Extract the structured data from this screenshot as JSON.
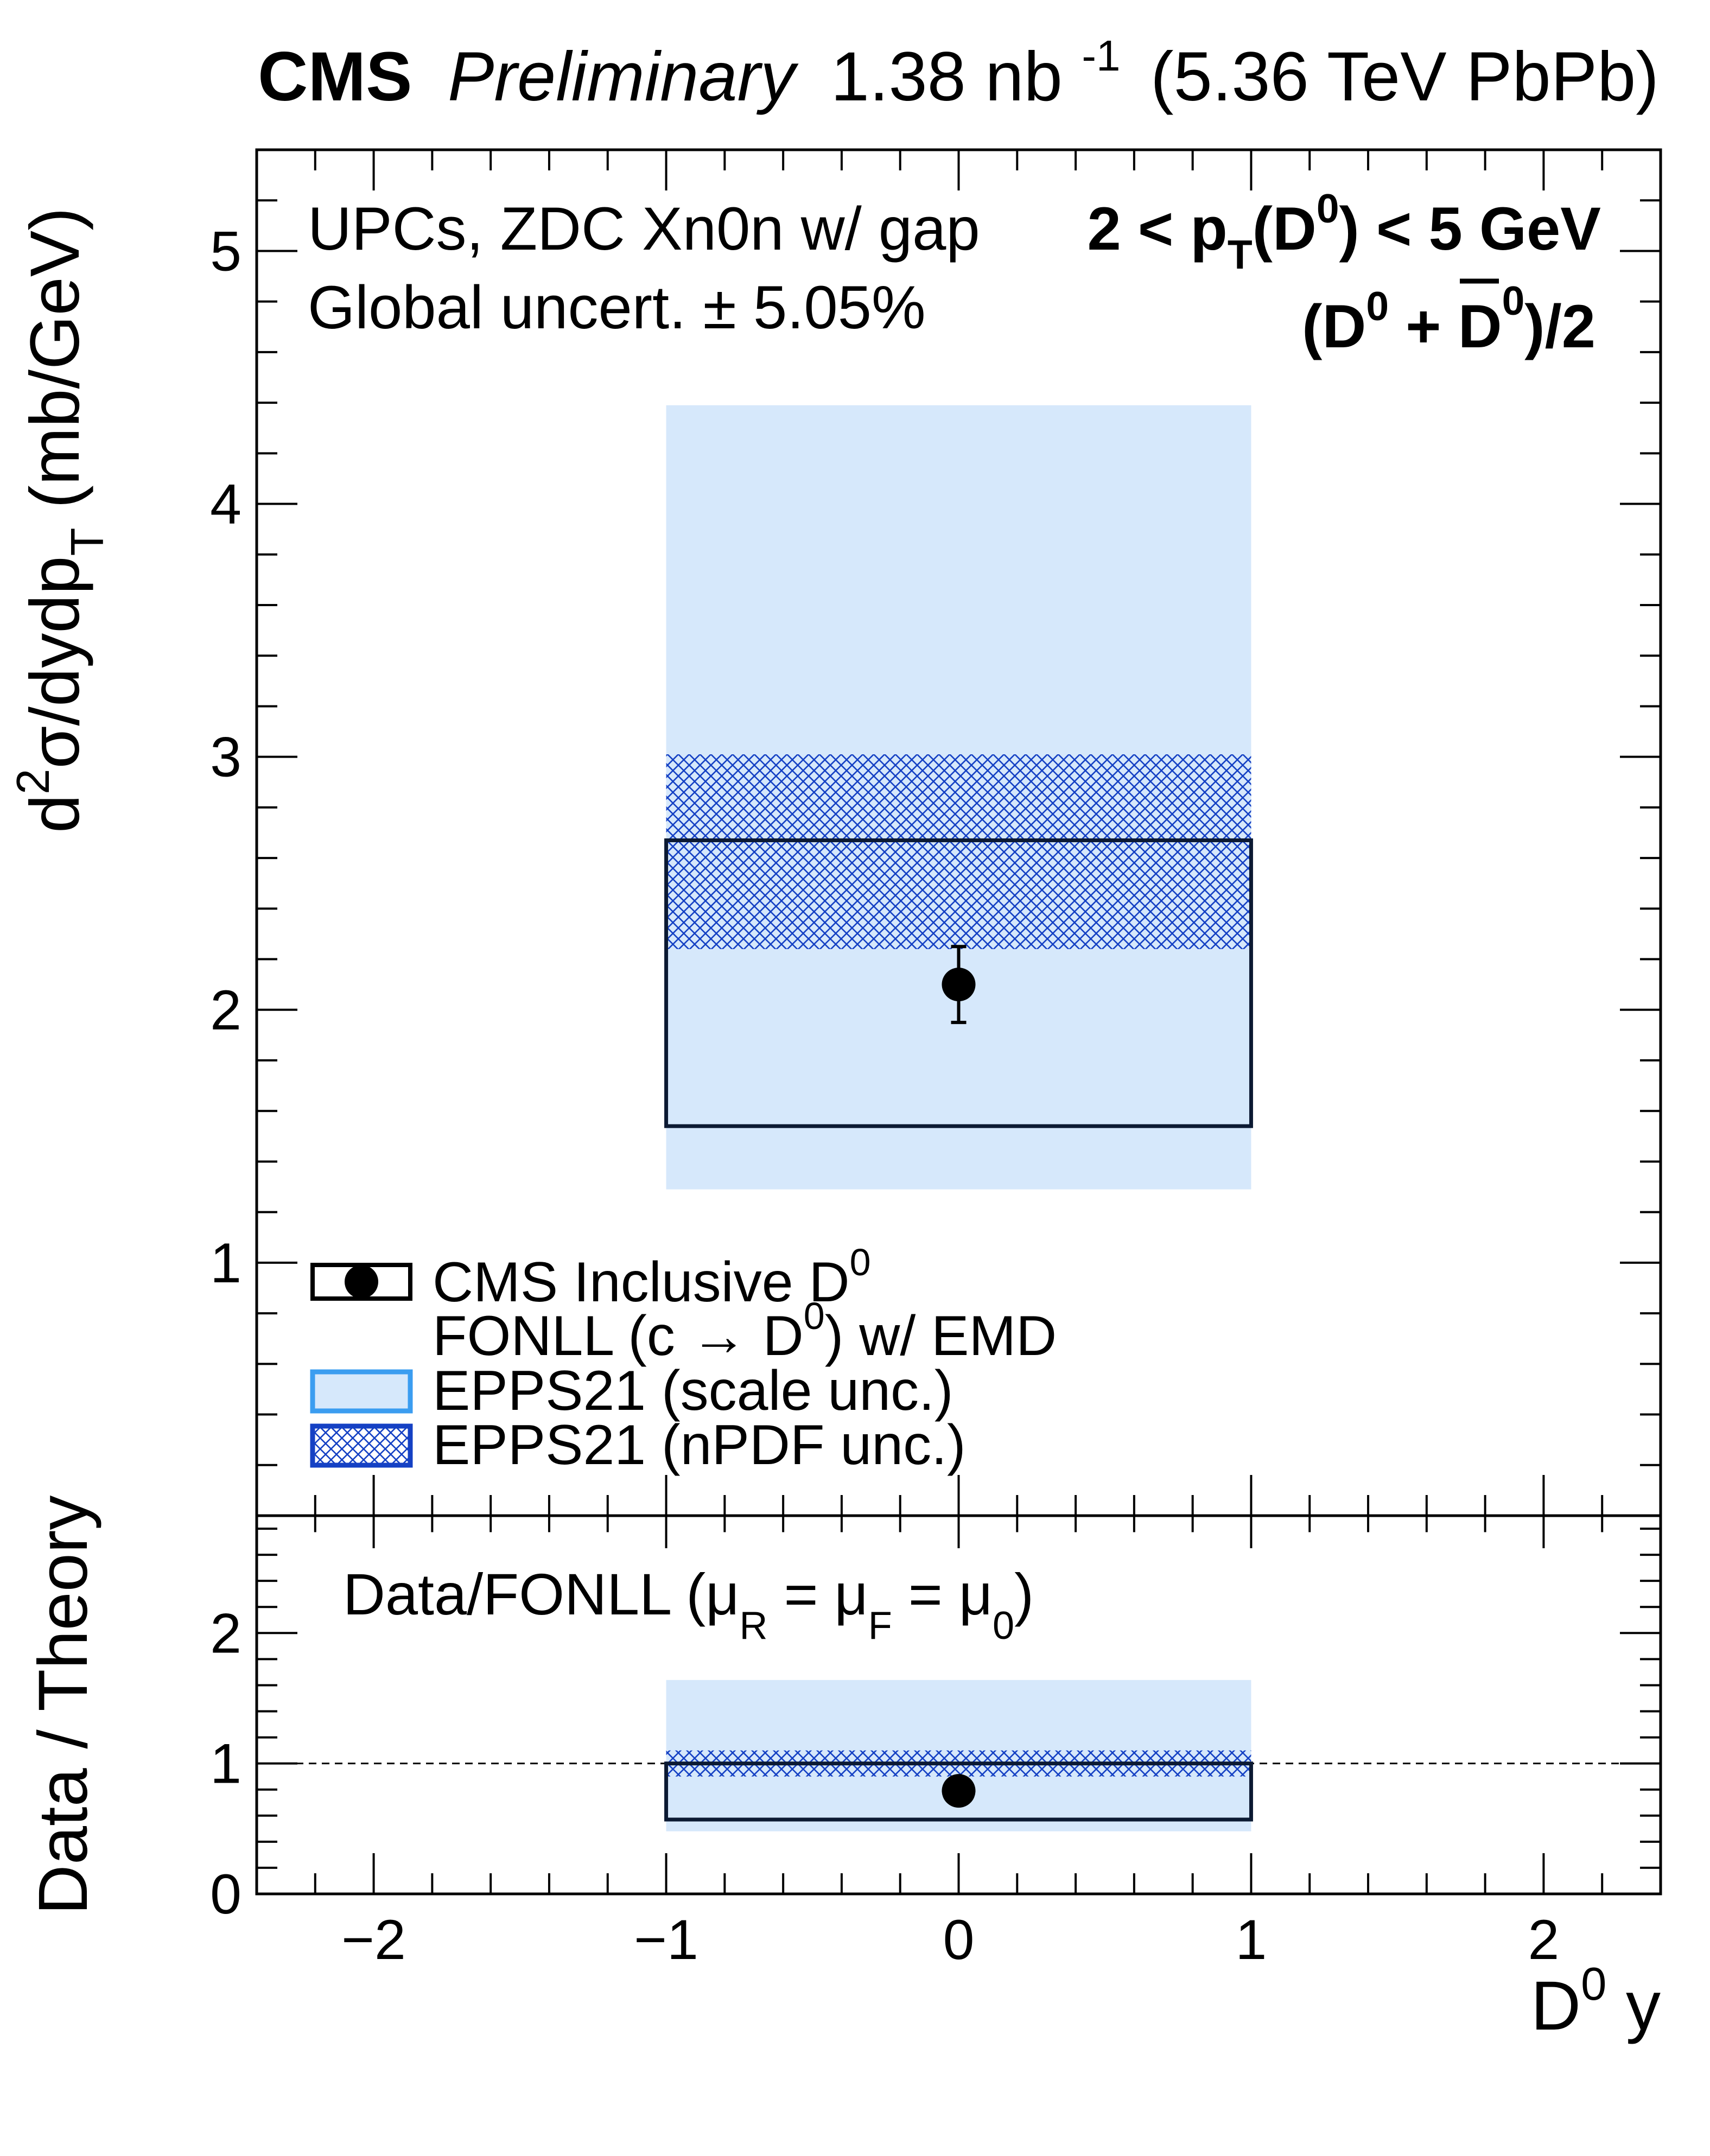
{
  "header": {
    "experiment": "CMS",
    "status": "Preliminary",
    "lumi_value": "1.38 nb",
    "lumi_exp": "-1",
    "energy": "(5.36 TeV PbPb)"
  },
  "annotations": {
    "selection": "UPCs, ZDC Xn0n w/ gap",
    "global_uncert": "Global uncert. ± 5.05%",
    "pt_range": {
      "lo": "2 < p",
      "sub": "T",
      "mid": "(D",
      "sup": "0",
      "hi": ") < 5 GeV"
    },
    "average": {
      "a": "(D",
      "a_sup": "0",
      "plus": " + ",
      "b": "D",
      "b_sup": "0",
      "c": ")/2"
    }
  },
  "legend": {
    "data": {
      "text": "CMS Inclusive D",
      "sup": "0"
    },
    "fonll": {
      "a": "FONLL (c → D",
      "sup": "0",
      "b": ") w/ EMD"
    },
    "scale": "EPPS21 (scale unc.)",
    "npdf": "EPPS21 (nPDF unc.)"
  },
  "axes": {
    "top_ylabel": {
      "a": "d",
      "a_sup": "2",
      "b": "σ/dydp",
      "b_sub": "T",
      "c": " (mb/GeV)"
    },
    "bottom_ylabel": "Data / Theory",
    "xlabel": {
      "a": "D",
      "sup": "0",
      "b": " y"
    },
    "ratio_label": {
      "a": "Data/FONLL (μ",
      "s1": "R",
      "b": " = μ",
      "s2": "F",
      "c": " = μ",
      "s3": "0",
      "d": ")"
    }
  },
  "colors": {
    "scale_fill": "#d6e8fb",
    "scale_legend_border": "#3b9df0",
    "npdf_hatch": "#1541c4",
    "frame": "#000000"
  },
  "chart_data": {
    "type": "errorbar-with-bands",
    "xlim": [
      -2.4,
      2.4
    ],
    "x_ticks": [
      -2,
      -1,
      0,
      1,
      2
    ],
    "x_tick_labels": [
      "−2",
      "−1",
      "0",
      "1",
      "2"
    ],
    "top": {
      "ylim": [
        0,
        5.4
      ],
      "y_ticks": [
        1,
        2,
        3,
        4,
        5
      ],
      "y_tick_labels": [
        "1",
        "2",
        "3",
        "4",
        "5"
      ],
      "data_point": {
        "x": 0,
        "y": 2.1,
        "err_low": 0.15,
        "err_high": 0.15
      },
      "fonll_box": {
        "x_lo": -1,
        "x_hi": 1,
        "y_lo": 1.54,
        "y_hi": 2.67
      },
      "scale_band": {
        "x_lo": -1,
        "x_hi": 1,
        "y_lo": 1.29,
        "y_hi": 4.39
      },
      "npdf_band": {
        "x_lo": -1,
        "x_hi": 1,
        "y_lo": 2.24,
        "y_hi": 3.01
      }
    },
    "bottom": {
      "ylim": [
        0,
        2.9
      ],
      "y_ticks": [
        0,
        1,
        2
      ],
      "y_tick_labels": [
        "0",
        "1",
        "2"
      ],
      "reference_line": 1,
      "data_point": {
        "x": 0,
        "y": 0.79,
        "err_low": 0.12,
        "err_high": 0.12
      },
      "fonll_box": {
        "x_lo": -1,
        "x_hi": 1,
        "y_lo": 0.57,
        "y_hi": 1.0
      },
      "scale_band": {
        "x_lo": -1,
        "x_hi": 1,
        "y_lo": 0.48,
        "y_hi": 1.64
      },
      "npdf_band": {
        "x_lo": -1,
        "x_hi": 1,
        "y_lo": 0.9,
        "y_hi": 1.1
      }
    }
  }
}
